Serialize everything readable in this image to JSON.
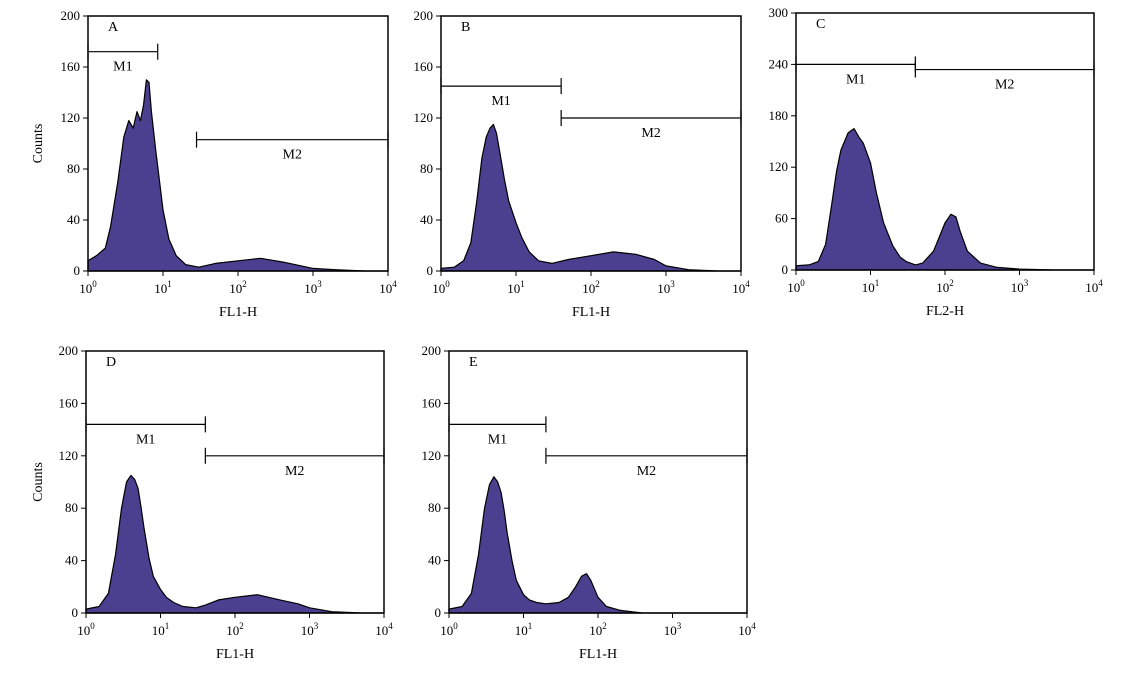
{
  "colors": {
    "fill": "#4b3f8f",
    "outline": "#000000"
  },
  "chart_data": [
    {
      "type": "area",
      "panel": "A",
      "xlabel": "FL1-H",
      "ylabel": "Counts",
      "xscale": "log",
      "xlim": [
        1,
        10000
      ],
      "ylim": [
        0,
        200
      ],
      "yticks": [
        "0",
        "40",
        "80",
        "120",
        "160",
        "200"
      ],
      "xticks": [
        {
          "base": "10",
          "exp": "0"
        },
        {
          "base": "10",
          "exp": "1"
        },
        {
          "base": "10",
          "exp": "2"
        },
        {
          "base": "10",
          "exp": "3"
        },
        {
          "base": "10",
          "exp": "4"
        }
      ],
      "gates": [
        {
          "label": "M1",
          "from": 1,
          "to": 8.5,
          "y": 172
        },
        {
          "label": "M2",
          "from": 28,
          "to": 10000,
          "y": 103
        }
      ],
      "x": [
        1,
        1.3,
        1.7,
        2,
        2.5,
        3,
        3.5,
        4,
        4.5,
        5,
        5.5,
        6,
        6.5,
        7,
        8,
        9,
        10,
        12,
        15,
        20,
        30,
        50,
        100,
        200,
        400,
        700,
        1000,
        2000,
        5000,
        10000
      ],
      "y": [
        8,
        12,
        18,
        35,
        70,
        105,
        118,
        112,
        125,
        118,
        130,
        150,
        148,
        125,
        95,
        70,
        48,
        25,
        12,
        5,
        3,
        6,
        8,
        10,
        7,
        4,
        2,
        1,
        0,
        0
      ]
    },
    {
      "type": "area",
      "panel": "B",
      "xlabel": "FL1-H",
      "ylabel": "",
      "xscale": "log",
      "xlim": [
        1,
        10000
      ],
      "ylim": [
        0,
        200
      ],
      "yticks": [
        "0",
        "40",
        "80",
        "120",
        "160",
        "200"
      ],
      "xticks": [
        {
          "base": "10",
          "exp": "0"
        },
        {
          "base": "10",
          "exp": "1"
        },
        {
          "base": "10",
          "exp": "2"
        },
        {
          "base": "10",
          "exp": "3"
        },
        {
          "base": "10",
          "exp": "4"
        }
      ],
      "gates": [
        {
          "label": "M1",
          "from": 1,
          "to": 40,
          "y": 145
        },
        {
          "label": "M2",
          "from": 40,
          "to": 10000,
          "y": 120
        }
      ],
      "x": [
        1,
        1.5,
        2,
        2.5,
        3,
        3.5,
        4,
        4.5,
        5,
        5.5,
        6,
        7,
        8,
        10,
        12,
        15,
        20,
        30,
        50,
        100,
        200,
        400,
        700,
        1000,
        2000,
        5000,
        10000
      ],
      "y": [
        2,
        3,
        8,
        22,
        55,
        88,
        105,
        112,
        115,
        108,
        95,
        72,
        55,
        38,
        26,
        15,
        8,
        6,
        9,
        12,
        15,
        13,
        9,
        4,
        1,
        0,
        0
      ]
    },
    {
      "type": "area",
      "panel": "C",
      "xlabel": "FL2-H",
      "ylabel": "",
      "xscale": "log",
      "xlim": [
        1,
        10000
      ],
      "ylim": [
        0,
        300
      ],
      "yticks": [
        "0",
        "60",
        "120",
        "180",
        "240",
        "300"
      ],
      "xticks": [
        {
          "base": "10",
          "exp": "0"
        },
        {
          "base": "10",
          "exp": "1"
        },
        {
          "base": "10",
          "exp": "2"
        },
        {
          "base": "10",
          "exp": "3"
        },
        {
          "base": "10",
          "exp": "4"
        }
      ],
      "gates": [
        {
          "label": "M1",
          "from": 1,
          "to": 40,
          "y": 240
        },
        {
          "label": "M2",
          "from": 40,
          "to": 10000,
          "y": 234
        }
      ],
      "x": [
        1,
        1.5,
        2,
        2.5,
        3,
        3.5,
        4,
        5,
        6,
        7,
        8,
        10,
        12,
        15,
        20,
        25,
        30,
        40,
        50,
        70,
        90,
        100,
        120,
        140,
        160,
        200,
        300,
        500,
        1000,
        3000,
        10000
      ],
      "y": [
        5,
        6,
        10,
        30,
        75,
        115,
        140,
        160,
        165,
        155,
        148,
        125,
        90,
        55,
        28,
        15,
        10,
        6,
        8,
        22,
        45,
        55,
        65,
        62,
        45,
        22,
        8,
        3,
        1,
        0,
        0
      ]
    },
    {
      "type": "area",
      "panel": "D",
      "xlabel": "FL1-H",
      "ylabel": "Counts",
      "xscale": "log",
      "xlim": [
        1,
        10000
      ],
      "ylim": [
        0,
        200
      ],
      "yticks": [
        "0",
        "40",
        "80",
        "120",
        "160",
        "200"
      ],
      "xticks": [
        {
          "base": "10",
          "exp": "0"
        },
        {
          "base": "10",
          "exp": "1"
        },
        {
          "base": "10",
          "exp": "2"
        },
        {
          "base": "10",
          "exp": "3"
        },
        {
          "base": "10",
          "exp": "4"
        }
      ],
      "gates": [
        {
          "label": "M1",
          "from": 1,
          "to": 40,
          "y": 144
        },
        {
          "label": "M2",
          "from": 40,
          "to": 10000,
          "y": 120
        }
      ],
      "x": [
        1,
        1.5,
        2,
        2.5,
        3,
        3.5,
        4,
        4.5,
        5,
        5.5,
        6,
        7,
        8,
        10,
        12,
        15,
        20,
        30,
        40,
        60,
        100,
        200,
        400,
        700,
        1000,
        2000,
        5000,
        10000
      ],
      "y": [
        3,
        5,
        15,
        45,
        80,
        100,
        105,
        102,
        95,
        80,
        65,
        42,
        28,
        18,
        12,
        8,
        5,
        4,
        6,
        10,
        12,
        14,
        10,
        7,
        4,
        1,
        0,
        0
      ]
    },
    {
      "type": "area",
      "panel": "E",
      "xlabel": "FL1-H",
      "ylabel": "",
      "xscale": "log",
      "xlim": [
        1,
        10000
      ],
      "ylim": [
        0,
        200
      ],
      "yticks": [
        "0",
        "40",
        "80",
        "120",
        "160",
        "200"
      ],
      "xticks": [
        {
          "base": "10",
          "exp": "0"
        },
        {
          "base": "10",
          "exp": "1"
        },
        {
          "base": "10",
          "exp": "2"
        },
        {
          "base": "10",
          "exp": "3"
        },
        {
          "base": "10",
          "exp": "4"
        }
      ],
      "gates": [
        {
          "label": "M1",
          "from": 1,
          "to": 20,
          "y": 144
        },
        {
          "label": "M2",
          "from": 20,
          "to": 10000,
          "y": 120
        }
      ],
      "x": [
        1,
        1.5,
        2,
        2.5,
        3,
        3.5,
        4,
        4.5,
        5,
        5.5,
        6,
        7,
        8,
        10,
        12,
        15,
        20,
        30,
        40,
        50,
        60,
        70,
        80,
        100,
        130,
        200,
        400,
        1000,
        10000
      ],
      "y": [
        3,
        5,
        15,
        45,
        80,
        98,
        104,
        100,
        92,
        78,
        62,
        40,
        25,
        14,
        10,
        8,
        7,
        8,
        12,
        20,
        28,
        30,
        25,
        12,
        5,
        2,
        0,
        0,
        0
      ]
    }
  ]
}
